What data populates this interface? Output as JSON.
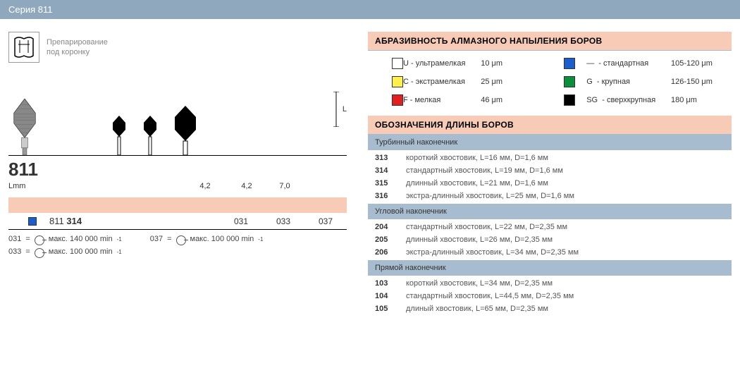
{
  "header": {
    "title": "Серия 811"
  },
  "left": {
    "prep_text_1": "Препарирование",
    "prep_text_2": "под коронку",
    "series_number": "811",
    "lmm_label": "Lmm",
    "small_sizes": [
      "4,2",
      "4,2",
      "7,0"
    ],
    "l_letter": "L",
    "code_line": {
      "series": "811",
      "shank": "314",
      "sizes": [
        "031",
        "033",
        "037"
      ]
    },
    "speeds": [
      {
        "code": "031",
        "text": "макс. 140 000 min",
        "col": 0
      },
      {
        "code": "033",
        "text": "макс. 100 000 min",
        "col": 0
      },
      {
        "code": "037",
        "text": "макс. 100 000 min",
        "col": 1
      }
    ]
  },
  "right": {
    "abrasive_title": "АБРАЗИВНОСТЬ АЛМАЗНОГО НАПЫЛЕНИЯ БОРОВ",
    "grits": [
      {
        "color": "#ffffff",
        "code": "U",
        "label": "- ультрамелкая",
        "size": "10 μm"
      },
      {
        "color": "#fff04a",
        "code": "C",
        "label": "- экстрамелкая",
        "size": "25 μm"
      },
      {
        "color": "#e22020",
        "code": "F",
        "label": "- мелкая",
        "size": "46 μm"
      },
      {
        "color": "#1a5fd0",
        "code": "—",
        "label": "- стандартная",
        "size": "105-120 μm"
      },
      {
        "color": "#0a8f3a",
        "code": "G",
        "label": "- крупная",
        "size": "126-150 μm"
      },
      {
        "color": "#000000",
        "code": "SG",
        "label": "- сверхкрупная",
        "size": "180 μm"
      }
    ],
    "length_title": "ОБОЗНАЧЕНИЯ ДЛИНЫ БОРОВ",
    "groups": [
      {
        "header": "Турбинный наконечник",
        "rows": [
          {
            "code": "313",
            "desc": "короткий хвостовик, L=16 мм, D=1,6 мм"
          },
          {
            "code": "314",
            "desc": "стандартный хвостовик, L=19 мм, D=1,6 мм"
          },
          {
            "code": "315",
            "desc": "длинный хвостовик, L=21 мм, D=1,6 мм"
          },
          {
            "code": "316",
            "desc": "экстра-длинный хвостовик, L=25 мм, D=1,6 мм"
          }
        ]
      },
      {
        "header": "Угловой наконечник",
        "rows": [
          {
            "code": "204",
            "desc": "стандартный хвостовик, L=22 мм, D=2,35 мм"
          },
          {
            "code": "205",
            "desc": "длинный хвостовик, L=26 мм, D=2,35 мм"
          },
          {
            "code": "206",
            "desc": "экстра-длинный хвостовик, L=34 мм, D=2,35 мм"
          }
        ]
      },
      {
        "header": "Прямой наконечник",
        "rows": [
          {
            "code": "103",
            "desc": "короткий хвостовик, L=34 мм, D=2,35 мм"
          },
          {
            "code": "104",
            "desc": "стандартный хвостовик, L=44,5 мм, D=2,35 мм"
          },
          {
            "code": "105",
            "desc": "длиный хвостовик, L=65 мм, D=2,35 мм"
          }
        ]
      }
    ]
  },
  "colors": {
    "header_bar": "#8fa8bd",
    "peach": "#f7cbb5",
    "sub": "#a8bccf"
  }
}
